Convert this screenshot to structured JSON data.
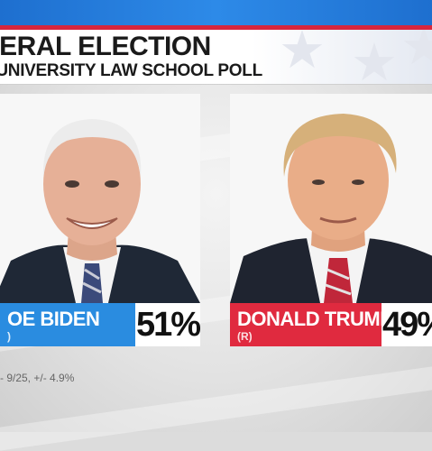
{
  "header": {
    "title": "NERAL ELECTION",
    "subtitle": "E UNIVERSITY LAW SCHOOL POLL"
  },
  "candidates": [
    {
      "name": "OE BIDEN",
      "party": ")",
      "percent": "51%",
      "bar_color": "#2a8ce0",
      "portrait": "candidate-portrait-biden"
    },
    {
      "name": "DONALD TRUMP",
      "party": "(R)",
      "percent": "49%",
      "bar_color": "#e02a3f",
      "portrait": "candidate-portrait-trump"
    }
  ],
  "footnote": "- 9/25, +/- 4.9%",
  "colors": {
    "top_bar": "#2d8ae8",
    "accent_red": "#d7263d"
  }
}
